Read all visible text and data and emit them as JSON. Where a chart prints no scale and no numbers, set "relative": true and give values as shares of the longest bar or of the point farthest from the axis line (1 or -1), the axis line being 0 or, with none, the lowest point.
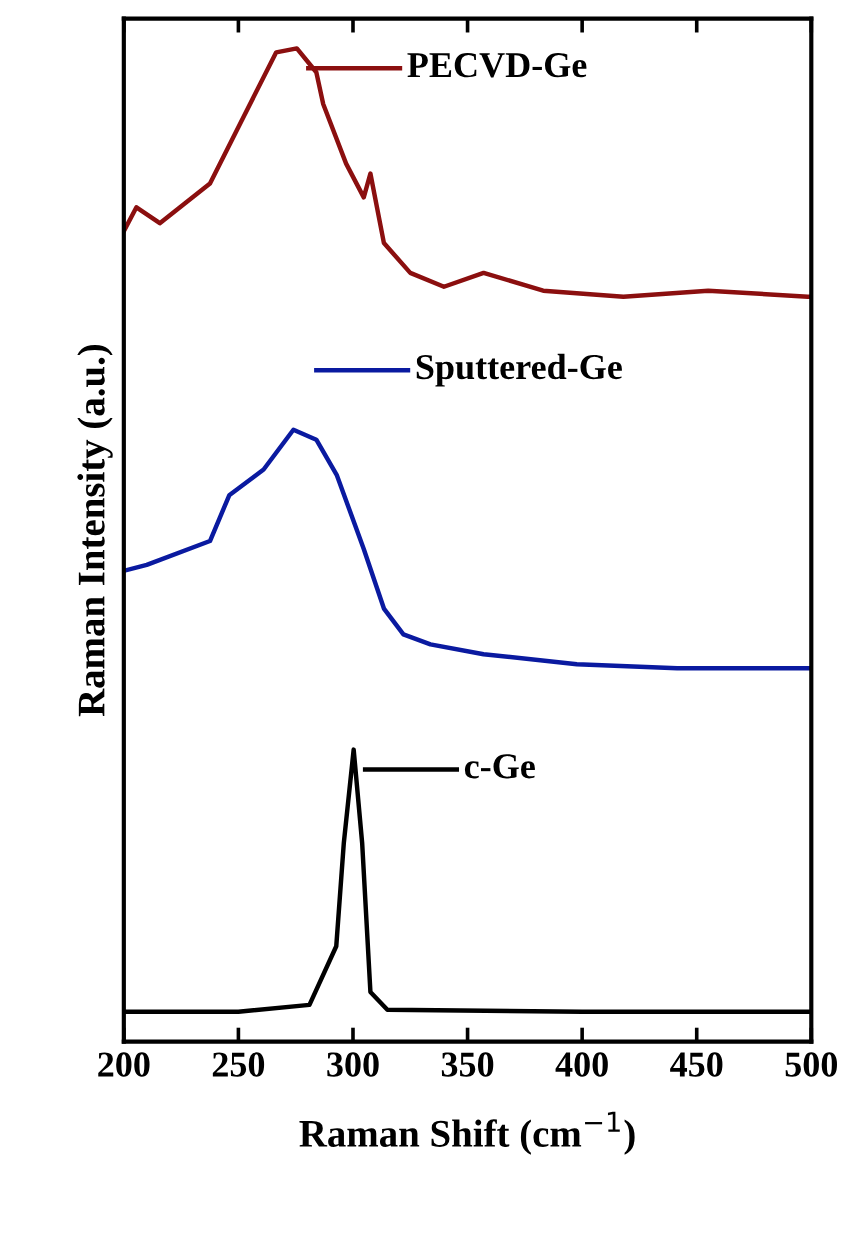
{
  "chart_data": {
    "type": "line",
    "xlabel": "Raman Shift (cm$^{−1}$)",
    "ylabel": "Raman Intensity (a.u.)",
    "relative": true,
    "xlim": [
      200,
      500
    ],
    "xticks": [
      200,
      250,
      300,
      350,
      400,
      450,
      500
    ],
    "grid": false,
    "legend": "top right",
    "marker": "none",
    "line_style": "solid",
    "series": [
      {
        "name": "PECVD-Ge",
        "color": "#8b0f0f",
        "x": [
          200,
          205.5,
          215.7,
          237.6,
          252,
          266.5,
          275.5,
          284,
          287,
          297,
          304.7,
          307.6,
          313.5,
          325,
          339.7,
          357,
          383,
          418,
          455,
          498.5,
          500
        ],
        "values": [
          0.816,
          0.84,
          0.824,
          0.864,
          0.93,
          0.996,
          1.0,
          0.976,
          0.944,
          0.884,
          0.85,
          0.874,
          0.804,
          0.774,
          0.76,
          0.774,
          0.756,
          0.75,
          0.756,
          0.75,
          0.75
        ]
      },
      {
        "name": "Sputtered-Ge",
        "color": "#0a1aa0",
        "x": [
          200,
          210,
          237.6,
          246,
          261,
          274,
          284,
          293,
          304.7,
          313.5,
          322,
          333.8,
          357,
          397.7,
          441.5,
          498.5,
          500
        ],
        "values": [
          0.474,
          0.48,
          0.504,
          0.55,
          0.576,
          0.616,
          0.606,
          0.57,
          0.496,
          0.436,
          0.41,
          0.4,
          0.39,
          0.38,
          0.376,
          0.376,
          0.376
        ]
      },
      {
        "name": "c-Ge",
        "color": "#000000",
        "x": [
          200,
          250,
          281,
          292.7,
          296,
          300.3,
          304,
          307.6,
          315,
          400,
          500
        ],
        "values": [
          0.03,
          0.03,
          0.037,
          0.096,
          0.2,
          0.294,
          0.2,
          0.05,
          0.032,
          0.03,
          0.03
        ]
      }
    ]
  }
}
